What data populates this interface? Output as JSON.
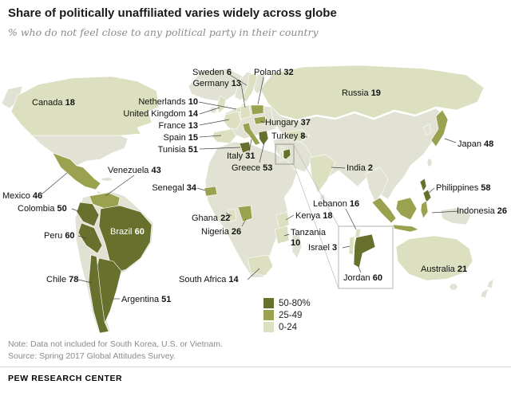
{
  "title": "Share of politically unaffiliated varies widely across globe",
  "subtitle": "% who do not feel close to any political party in their country",
  "note": "Note: Data not included for South Korea, U.S. or Vietnam.",
  "source": "Source: Spring 2017 Global Attitudes Survey.",
  "brand": "PEW RESEARCH CENTER",
  "chart_data": {
    "type": "choropleth_world_map",
    "measure": "% who do not feel close to any political party in their country",
    "unsurveyed_color": "#e2e2d4",
    "legend": {
      "position": "bottom-center",
      "bins": [
        {
          "label": "50-80%",
          "min": 50,
          "max": 80,
          "color": "#68702d"
        },
        {
          "label": "25-49",
          "min": 25,
          "max": 49,
          "color": "#9aa24f"
        },
        {
          "label": "0-24",
          "min": 0,
          "max": 24,
          "color": "#dcdfc0"
        }
      ]
    },
    "countries": [
      {
        "name": "Canada",
        "value": 18
      },
      {
        "name": "Mexico",
        "value": 46
      },
      {
        "name": "Colombia",
        "value": 50
      },
      {
        "name": "Venezuela",
        "value": 43
      },
      {
        "name": "Peru",
        "value": 60
      },
      {
        "name": "Brazil",
        "value": 60
      },
      {
        "name": "Chile",
        "value": 78
      },
      {
        "name": "Argentina",
        "value": 51
      },
      {
        "name": "Sweden",
        "value": 6
      },
      {
        "name": "Poland",
        "value": 32
      },
      {
        "name": "Germany",
        "value": 13
      },
      {
        "name": "Netherlands",
        "value": 10
      },
      {
        "name": "United Kingdom",
        "value": 14
      },
      {
        "name": "France",
        "value": 13
      },
      {
        "name": "Spain",
        "value": 15
      },
      {
        "name": "Italy",
        "value": 31
      },
      {
        "name": "Greece",
        "value": 53
      },
      {
        "name": "Hungary",
        "value": 37
      },
      {
        "name": "Russia",
        "value": 19
      },
      {
        "name": "Turkey",
        "value": 8
      },
      {
        "name": "Tunisia",
        "value": 51
      },
      {
        "name": "Senegal",
        "value": 34
      },
      {
        "name": "Ghana",
        "value": 22
      },
      {
        "name": "Nigeria",
        "value": 26
      },
      {
        "name": "Kenya",
        "value": 18
      },
      {
        "name": "Tanzania",
        "value": 10
      },
      {
        "name": "South Africa",
        "value": 14
      },
      {
        "name": "Lebanon",
        "value": 16
      },
      {
        "name": "Israel",
        "value": 3
      },
      {
        "name": "Jordan",
        "value": 60
      },
      {
        "name": "India",
        "value": 2
      },
      {
        "name": "Japan",
        "value": 48
      },
      {
        "name": "Philippines",
        "value": 58
      },
      {
        "name": "Indonesia",
        "value": 26
      },
      {
        "name": "Australia",
        "value": 21
      }
    ]
  }
}
